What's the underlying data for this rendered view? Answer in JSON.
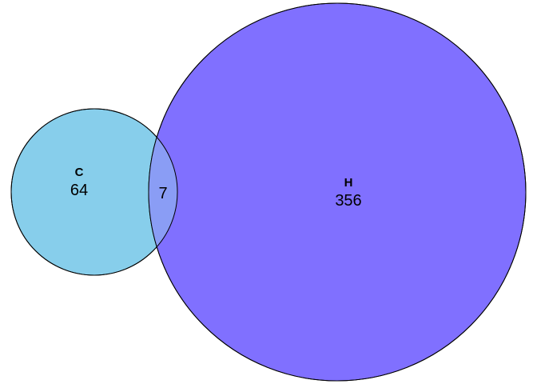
{
  "diagram": {
    "type": "venn",
    "sets": [
      {
        "name": "C",
        "only_count": "64",
        "color": "#87CEEB"
      },
      {
        "name": "H",
        "only_count": "356",
        "color": "#8070FF"
      }
    ],
    "intersection": {
      "count": "7",
      "color": "#8A9DF5"
    },
    "outline_color": "#000000"
  }
}
